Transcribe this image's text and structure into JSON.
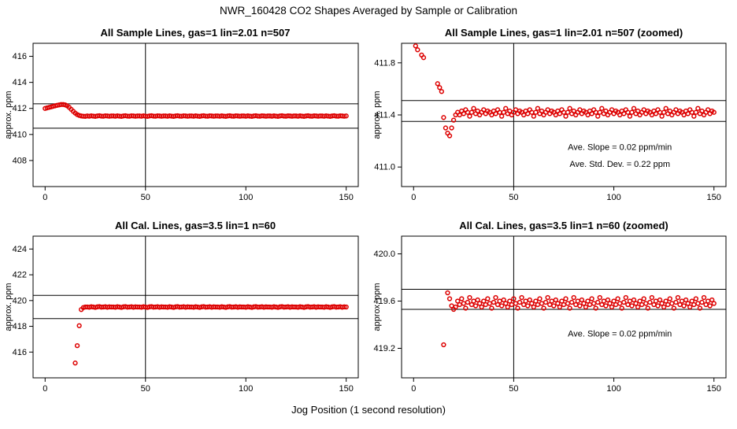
{
  "page": {
    "main_title": "NWR_160428  CO2 Shapes Averaged by Sample or Calibration",
    "x_axis_shared_label": "Jog Position (1 second resolution)"
  },
  "colors": {
    "point": "#dd0000",
    "axis": "#000000"
  },
  "chart_data": [
    {
      "type": "scatter",
      "title": "All Sample Lines, gas=1 lin=2.01 n=507",
      "ylabel": "approx. ppm",
      "xlim": [
        -6,
        156
      ],
      "ylim": [
        406.0,
        417.0
      ],
      "xtick_values": [
        0,
        50,
        100,
        150
      ],
      "xtick_labels": [
        "0",
        "50",
        "100",
        "150"
      ],
      "ytick_values": [
        408,
        410,
        412,
        414,
        416
      ],
      "ytick_labels": [
        "408",
        "410",
        "412",
        "414",
        "416"
      ],
      "hlines": [
        412.35,
        410.48
      ],
      "vlines": [
        50
      ],
      "point_color": "#dd0000",
      "x_start": 0,
      "x_step": 1,
      "y": [
        412.0,
        412.04,
        412.08,
        412.12,
        412.16,
        412.2,
        412.24,
        412.27,
        412.3,
        412.3,
        412.27,
        412.2,
        412.08,
        411.93,
        411.78,
        411.64,
        411.53,
        411.46,
        411.42,
        411.4,
        411.39,
        411.42,
        411.4,
        411.43,
        411.41,
        411.39,
        411.42,
        411.44,
        411.41,
        411.4,
        411.43,
        411.42,
        411.4,
        411.42,
        411.42,
        411.4,
        411.43,
        411.41,
        411.39,
        411.42,
        411.44,
        411.41,
        411.4,
        411.43,
        411.42,
        411.4,
        411.42,
        411.42,
        411.4,
        411.43,
        411.41,
        411.39,
        411.42,
        411.44,
        411.41,
        411.4,
        411.43,
        411.42,
        411.4,
        411.42,
        411.42,
        411.4,
        411.43,
        411.41,
        411.39,
        411.42,
        411.44,
        411.41,
        411.4,
        411.43,
        411.42,
        411.4,
        411.42,
        411.42,
        411.4,
        411.43,
        411.41,
        411.39,
        411.42,
        411.44,
        411.41,
        411.4,
        411.43,
        411.42,
        411.4,
        411.42,
        411.42,
        411.4,
        411.43,
        411.41,
        411.39,
        411.42,
        411.44,
        411.41,
        411.4,
        411.43,
        411.42,
        411.4,
        411.42,
        411.42,
        411.4,
        411.43,
        411.41,
        411.39,
        411.42,
        411.44,
        411.41,
        411.4,
        411.43,
        411.42,
        411.4,
        411.42,
        411.42,
        411.4,
        411.43,
        411.41,
        411.39,
        411.42,
        411.44,
        411.41,
        411.4,
        411.43,
        411.42,
        411.4,
        411.42,
        411.42,
        411.4,
        411.43,
        411.41,
        411.39,
        411.42,
        411.44,
        411.41,
        411.4,
        411.43,
        411.42,
        411.4,
        411.42,
        411.42,
        411.4,
        411.43,
        411.41,
        411.39,
        411.42,
        411.44,
        411.41,
        411.4,
        411.43,
        411.42,
        411.4,
        411.42
      ],
      "annotations": []
    },
    {
      "type": "scatter",
      "title": "All Sample Lines, gas=1 lin=2.01 n=507 (zoomed)",
      "ylabel": "approx. ppm",
      "xlim": [
        -6,
        156
      ],
      "ylim": [
        410.85,
        411.95
      ],
      "xtick_values": [
        0,
        50,
        100,
        150
      ],
      "xtick_labels": [
        "0",
        "50",
        "100",
        "150"
      ],
      "ytick_values": [
        411.0,
        411.4,
        411.8
      ],
      "ytick_labels": [
        "411.0",
        "411.4",
        "411.8"
      ],
      "hlines": [
        411.51,
        411.35
      ],
      "vlines": [
        50
      ],
      "point_color": "#dd0000",
      "x_start": 0,
      "x_step": 1,
      "y": [
        null,
        411.93,
        411.9,
        null,
        411.86,
        411.84,
        null,
        null,
        null,
        null,
        null,
        null,
        411.64,
        411.61,
        411.58,
        411.38,
        411.3,
        411.26,
        411.24,
        411.3,
        411.36,
        411.4,
        411.42,
        411.4,
        411.43,
        411.41,
        411.44,
        411.42,
        411.39,
        411.42,
        411.45,
        411.41,
        411.43,
        411.4,
        411.42,
        411.44,
        411.41,
        411.43,
        411.42,
        411.4,
        411.43,
        411.41,
        411.44,
        411.42,
        411.39,
        411.42,
        411.45,
        411.41,
        411.43,
        411.4,
        411.42,
        411.44,
        411.41,
        411.43,
        411.42,
        411.4,
        411.43,
        411.41,
        411.44,
        411.42,
        411.39,
        411.42,
        411.45,
        411.41,
        411.43,
        411.4,
        411.42,
        411.44,
        411.41,
        411.43,
        411.42,
        411.4,
        411.43,
        411.41,
        411.44,
        411.42,
        411.39,
        411.42,
        411.45,
        411.41,
        411.43,
        411.4,
        411.42,
        411.44,
        411.41,
        411.43,
        411.42,
        411.4,
        411.43,
        411.41,
        411.44,
        411.42,
        411.39,
        411.42,
        411.45,
        411.41,
        411.43,
        411.4,
        411.42,
        411.44,
        411.41,
        411.43,
        411.42,
        411.4,
        411.43,
        411.41,
        411.44,
        411.42,
        411.39,
        411.42,
        411.45,
        411.41,
        411.43,
        411.4,
        411.42,
        411.44,
        411.41,
        411.43,
        411.42,
        411.4,
        411.43,
        411.41,
        411.44,
        411.42,
        411.39,
        411.42,
        411.45,
        411.41,
        411.43,
        411.4,
        411.42,
        411.44,
        411.41,
        411.43,
        411.42,
        411.4,
        411.43,
        411.41,
        411.44,
        411.42,
        411.39,
        411.42,
        411.45,
        411.41,
        411.43,
        411.4,
        411.42,
        411.44,
        411.41,
        411.43,
        411.42
      ],
      "annotations": [
        {
          "text": "Ave. Slope =  0.02  ppm/min",
          "x": 103,
          "y": 411.13
        },
        {
          "text": "Ave. Std. Dev. =  0.22  ppm",
          "x": 103,
          "y": 411.0
        }
      ]
    },
    {
      "type": "scatter",
      "title": "All Cal. Lines, gas=3.5 lin=1 n=60",
      "ylabel": "approx. ppm",
      "xlim": [
        -6,
        156
      ],
      "ylim": [
        414.0,
        425.0
      ],
      "xtick_values": [
        0,
        50,
        100,
        150
      ],
      "xtick_labels": [
        "0",
        "50",
        "100",
        "150"
      ],
      "ytick_values": [
        416,
        418,
        420,
        422,
        424
      ],
      "ytick_labels": [
        "416",
        "418",
        "420",
        "422",
        "424"
      ],
      "hlines": [
        420.4,
        418.6
      ],
      "vlines": [
        50
      ],
      "point_color": "#dd0000",
      "x_start": 0,
      "x_step": 1,
      "y": [
        null,
        null,
        null,
        null,
        null,
        null,
        null,
        null,
        null,
        null,
        null,
        null,
        null,
        null,
        null,
        415.15,
        416.5,
        418.05,
        419.3,
        419.45,
        419.5,
        419.5,
        419.48,
        419.52,
        419.5,
        419.47,
        419.51,
        419.53,
        419.49,
        419.5,
        419.52,
        419.48,
        419.51,
        419.5,
        419.5,
        419.48,
        419.52,
        419.5,
        419.47,
        419.51,
        419.53,
        419.49,
        419.5,
        419.52,
        419.48,
        419.51,
        419.5,
        419.5,
        419.48,
        419.52,
        419.5,
        419.47,
        419.51,
        419.53,
        419.49,
        419.5,
        419.52,
        419.48,
        419.51,
        419.5,
        419.5,
        419.48,
        419.52,
        419.5,
        419.47,
        419.51,
        419.53,
        419.49,
        419.5,
        419.52,
        419.48,
        419.51,
        419.5,
        419.5,
        419.48,
        419.52,
        419.5,
        419.47,
        419.51,
        419.53,
        419.49,
        419.5,
        419.52,
        419.48,
        419.51,
        419.5,
        419.5,
        419.48,
        419.52,
        419.5,
        419.47,
        419.51,
        419.53,
        419.49,
        419.5,
        419.52,
        419.48,
        419.51,
        419.5,
        419.5,
        419.48,
        419.52,
        419.5,
        419.47,
        419.51,
        419.53,
        419.49,
        419.5,
        419.52,
        419.48,
        419.51,
        419.5,
        419.5,
        419.48,
        419.52,
        419.5,
        419.47,
        419.51,
        419.53,
        419.49,
        419.5,
        419.52,
        419.48,
        419.51,
        419.5,
        419.5,
        419.48,
        419.52,
        419.5,
        419.47,
        419.51,
        419.53,
        419.49,
        419.5,
        419.52,
        419.48,
        419.51,
        419.5,
        419.5,
        419.48,
        419.52,
        419.5,
        419.47,
        419.51,
        419.53,
        419.49,
        419.5,
        419.52,
        419.48,
        419.51,
        419.5
      ],
      "annotations": []
    },
    {
      "type": "scatter",
      "title": "All Cal. Lines, gas=3.5 lin=1 n=60 (zoomed)",
      "ylabel": "approx. ppm",
      "xlim": [
        -6,
        156
      ],
      "ylim": [
        418.95,
        420.15
      ],
      "xtick_values": [
        0,
        50,
        100,
        150
      ],
      "xtick_labels": [
        "0",
        "50",
        "100",
        "150"
      ],
      "ytick_values": [
        419.2,
        419.6,
        420.0
      ],
      "ytick_labels": [
        "419.2",
        "419.6",
        "420.0"
      ],
      "hlines": [
        419.7,
        419.53
      ],
      "vlines": [
        50
      ],
      "point_color": "#dd0000",
      "x_start": 0,
      "x_step": 1,
      "y": [
        null,
        null,
        null,
        null,
        null,
        null,
        null,
        null,
        null,
        null,
        null,
        null,
        null,
        null,
        null,
        419.23,
        null,
        419.67,
        419.62,
        419.56,
        419.53,
        419.55,
        419.6,
        419.57,
        419.62,
        419.58,
        419.54,
        419.59,
        419.63,
        419.57,
        419.6,
        419.56,
        419.61,
        419.58,
        419.55,
        419.6,
        419.57,
        419.62,
        419.58,
        419.54,
        419.59,
        419.63,
        419.57,
        419.6,
        419.56,
        419.61,
        419.58,
        419.55,
        419.6,
        419.57,
        419.62,
        419.58,
        419.54,
        419.59,
        419.63,
        419.57,
        419.6,
        419.56,
        419.61,
        419.58,
        419.55,
        419.6,
        419.57,
        419.62,
        419.58,
        419.54,
        419.59,
        419.63,
        419.57,
        419.6,
        419.56,
        419.61,
        419.58,
        419.55,
        419.6,
        419.57,
        419.62,
        419.58,
        419.54,
        419.59,
        419.63,
        419.57,
        419.6,
        419.56,
        419.61,
        419.58,
        419.55,
        419.6,
        419.57,
        419.62,
        419.58,
        419.54,
        419.59,
        419.63,
        419.57,
        419.6,
        419.56,
        419.61,
        419.58,
        419.55,
        419.6,
        419.57,
        419.62,
        419.58,
        419.54,
        419.59,
        419.63,
        419.57,
        419.6,
        419.56,
        419.61,
        419.58,
        419.55,
        419.6,
        419.57,
        419.62,
        419.58,
        419.54,
        419.59,
        419.63,
        419.57,
        419.6,
        419.56,
        419.61,
        419.58,
        419.55,
        419.6,
        419.57,
        419.62,
        419.58,
        419.54,
        419.59,
        419.63,
        419.57,
        419.6,
        419.56,
        419.61,
        419.58,
        419.55,
        419.6,
        419.57,
        419.62,
        419.58,
        419.54,
        419.59,
        419.63,
        419.57,
        419.6,
        419.56,
        419.61,
        419.58
      ],
      "annotations": [
        {
          "text": "Ave. Slope =  0.02  ppm/min",
          "x": 103,
          "y": 419.3
        }
      ]
    }
  ]
}
